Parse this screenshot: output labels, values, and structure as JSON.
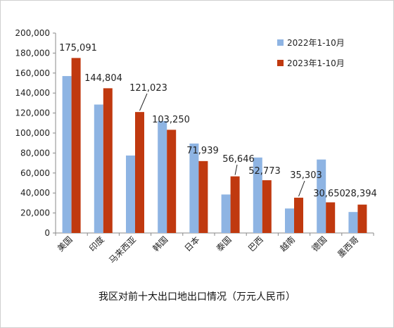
{
  "chart_data": {
    "type": "bar",
    "title": "我区对前十大出口地出口情况（万元人民币）",
    "categories": [
      "美国",
      "印度",
      "马来西亚",
      "韩国",
      "日本",
      "泰国",
      "巴西",
      "越南",
      "德国",
      "墨西哥"
    ],
    "series": [
      {
        "name": "2022年1-10月",
        "color": "#8eb4e3",
        "values": [
          157000,
          128500,
          77500,
          112000,
          89500,
          38500,
          75500,
          24500,
          73500,
          21000
        ]
      },
      {
        "name": "2023年1-10月",
        "color": "#c0390f",
        "values": [
          175091,
          144804,
          121023,
          103250,
          71939,
          56646,
          52773,
          35303,
          30650,
          28394
        ]
      }
    ],
    "data_labels": [
      "175,091",
      "144,804",
      "121,023",
      "103,250",
      "71,939",
      "56,646",
      "52,773",
      "35,303",
      "30,650",
      "28,394"
    ],
    "y_ticks": [
      "0",
      "20,000",
      "40,000",
      "60,000",
      "80,000",
      "100,000",
      "120,000",
      "140,000",
      "160,000",
      "180,000",
      "200,000"
    ],
    "ylim": [
      0,
      200000
    ],
    "grid": false,
    "legend_position": "top-right"
  }
}
